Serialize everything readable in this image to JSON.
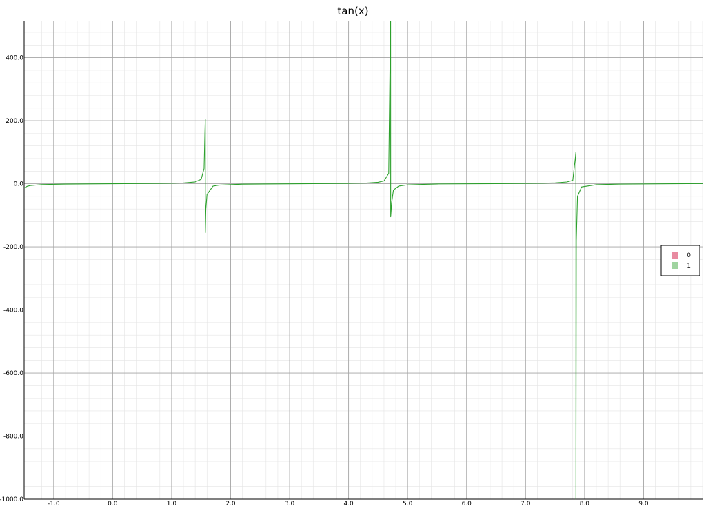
{
  "chart_data": {
    "type": "line",
    "title": "tan(x)",
    "xlabel": "",
    "ylabel": "",
    "xlim": [
      -1.5,
      10.0
    ],
    "ylim": [
      -1000,
      515
    ],
    "xtick_labels": [
      "-1.0",
      "0.0",
      "1.0",
      "2.0",
      "3.0",
      "4.0",
      "5.0",
      "6.0",
      "7.0",
      "8.0",
      "9.0"
    ],
    "ytick_labels": [
      "-1000.0",
      "-800.0",
      "-600.0",
      "-400.0",
      "-200.0",
      "0.0",
      "200.0",
      "400.0"
    ],
    "grid": true,
    "legend_position": "right",
    "series": [
      {
        "name": "0",
        "color": "#e88ba1",
        "x": [],
        "y": []
      },
      {
        "name": "1",
        "color": "#2ca02c",
        "x": [
          -1.5,
          -1.45,
          -1.4,
          -1.2,
          -0.8,
          0.0,
          0.8,
          1.0,
          1.2,
          1.4,
          1.5,
          1.55,
          1.565,
          1.5708,
          1.5712,
          1.58,
          1.6,
          1.7,
          1.8,
          2.2,
          3.0,
          4.0,
          4.3,
          4.5,
          4.6,
          4.68,
          4.71,
          4.7125,
          4.7135,
          4.73,
          4.76,
          4.85,
          5.0,
          5.5,
          6.5,
          7.3,
          7.5,
          7.7,
          7.8,
          7.84,
          7.853,
          7.8535,
          7.86,
          7.88,
          7.95,
          8.2,
          8.6,
          9.5,
          10.0
        ],
        "y": [
          -14.1,
          -8.2,
          -5.8,
          -2.6,
          -1.0,
          0.0,
          1.0,
          1.6,
          2.6,
          5.8,
          14.1,
          48.1,
          170,
          205,
          -155,
          -80,
          -34,
          -7.7,
          -4.3,
          -1.4,
          -0.14,
          1.16,
          2.3,
          4.6,
          8.9,
          33.0,
          515,
          515,
          -105,
          -60,
          -20,
          -7.3,
          -3.4,
          -0.7,
          0.22,
          1.7,
          2.7,
          5.6,
          10.7,
          76.0,
          100,
          -1000,
          -180,
          -40,
          -10,
          -2.9,
          -1.2,
          -0.08,
          0.65
        ]
      }
    ]
  }
}
